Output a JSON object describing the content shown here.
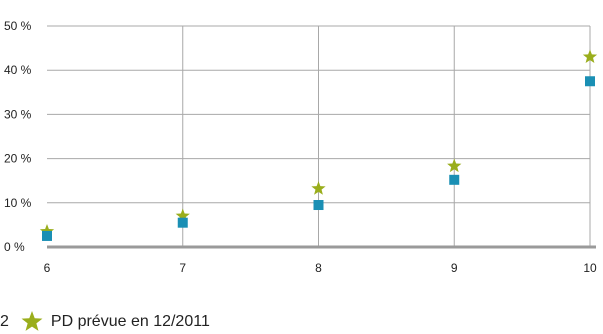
{
  "chart_data": {
    "type": "scatter",
    "title": "",
    "xlabel": "",
    "ylabel": "",
    "x": [
      6,
      7,
      8,
      9,
      10
    ],
    "x_ticks": [
      "6",
      "7",
      "8",
      "9",
      "10"
    ],
    "xlim": [
      6,
      10
    ],
    "ylim": [
      0,
      50
    ],
    "y_ticks": [
      {
        "value": 0,
        "label": "0 %"
      },
      {
        "value": 10,
        "label": "10 %"
      },
      {
        "value": 20,
        "label": "20 %"
      },
      {
        "value": 30,
        "label": "30 %"
      },
      {
        "value": 40,
        "label": "40 %"
      },
      {
        "value": 50,
        "label": "50 %"
      }
    ],
    "grid": {
      "horizontal": true,
      "vertical": true
    },
    "legend_position": "bottom-left",
    "series": [
      {
        "name": "",
        "marker": "square",
        "color": "#1a8fb4",
        "values": [
          2.5,
          5.5,
          9.5,
          15.2,
          37.5
        ]
      },
      {
        "name": "PD prévue en 12/2011",
        "marker": "star",
        "color": "#9aae1c",
        "values": [
          3.5,
          7,
          13.2,
          18.3,
          43
        ]
      }
    ]
  },
  "legend": {
    "lead_text": "2",
    "star_label": "PD prévue en 12/2011"
  }
}
